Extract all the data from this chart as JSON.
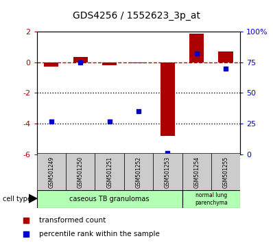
{
  "title": "GDS4256 / 1552623_3p_at",
  "samples": [
    "GSM501249",
    "GSM501250",
    "GSM501251",
    "GSM501252",
    "GSM501253",
    "GSM501254",
    "GSM501255"
  ],
  "red_values": [
    -0.3,
    0.35,
    -0.2,
    -0.05,
    -4.8,
    1.85,
    0.7
  ],
  "blue_values_pct": [
    27,
    75,
    27,
    35,
    1,
    82,
    70
  ],
  "ylim_left": [
    -6,
    2
  ],
  "ylim_right": [
    0,
    100
  ],
  "left_ticks": [
    2,
    0,
    -2,
    -4,
    -6
  ],
  "right_ticks": [
    100,
    75,
    50,
    25,
    0
  ],
  "right_tick_labels": [
    "100%",
    "75",
    "50",
    "25",
    "0"
  ],
  "dotted_lines": [
    -2,
    -4
  ],
  "legend_red": "transformed count",
  "legend_blue": "percentile rank within the sample",
  "red_color": "#aa0000",
  "blue_color": "#0000cc",
  "bar_width": 0.5,
  "blue_marker_size": 5,
  "background_cells": "#cccccc",
  "green_light": "#b3ffb3"
}
